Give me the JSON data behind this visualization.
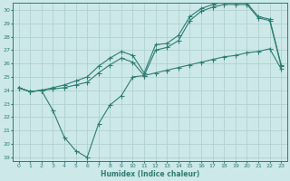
{
  "xlabel": "Humidex (Indice chaleur)",
  "xlim": [
    -0.5,
    23.5
  ],
  "ylim": [
    18.7,
    30.5
  ],
  "yticks": [
    19,
    20,
    21,
    22,
    23,
    24,
    25,
    26,
    27,
    28,
    29,
    30
  ],
  "xticks": [
    0,
    1,
    2,
    3,
    4,
    5,
    6,
    7,
    8,
    9,
    10,
    11,
    12,
    13,
    14,
    15,
    16,
    17,
    18,
    19,
    20,
    21,
    22,
    23
  ],
  "bg_color": "#cce8e8",
  "grid_color": "#aacece",
  "line_color": "#2e7d72",
  "line1_x": [
    0,
    1,
    2,
    3,
    4,
    5,
    6,
    7,
    8,
    9,
    10,
    11,
    12,
    13,
    14,
    15,
    16,
    17,
    18,
    19,
    20,
    21,
    22,
    23
  ],
  "line1_y": [
    24.2,
    23.9,
    24.0,
    24.1,
    24.2,
    24.4,
    24.6,
    25.3,
    25.9,
    26.4,
    26.1,
    25.1,
    27.0,
    27.2,
    27.7,
    29.2,
    29.9,
    30.2,
    30.4,
    30.4,
    30.4,
    29.4,
    29.2,
    25.8
  ],
  "line2_x": [
    0,
    1,
    2,
    3,
    4,
    5,
    6,
    7,
    8,
    9,
    10,
    11,
    12,
    13,
    14,
    15,
    16,
    17,
    18,
    19,
    20,
    21,
    22,
    23
  ],
  "line2_y": [
    24.2,
    23.9,
    24.0,
    24.2,
    24.4,
    24.7,
    25.0,
    25.8,
    26.4,
    26.9,
    26.6,
    25.3,
    27.4,
    27.5,
    28.1,
    29.5,
    30.1,
    30.4,
    30.6,
    30.6,
    30.5,
    29.5,
    29.3,
    25.9
  ],
  "line3_x": [
    0,
    1,
    2,
    3,
    4,
    5,
    6,
    7,
    8,
    9,
    10,
    11,
    12,
    13,
    14,
    15,
    16,
    17,
    18,
    19,
    20,
    21,
    22,
    23
  ],
  "line3_y": [
    24.2,
    23.9,
    24.0,
    22.5,
    20.5,
    19.5,
    19.0,
    21.5,
    22.9,
    23.6,
    25.0,
    25.1,
    25.3,
    25.5,
    25.7,
    25.9,
    26.1,
    26.3,
    26.5,
    26.6,
    26.8,
    26.9,
    27.1,
    25.6
  ]
}
